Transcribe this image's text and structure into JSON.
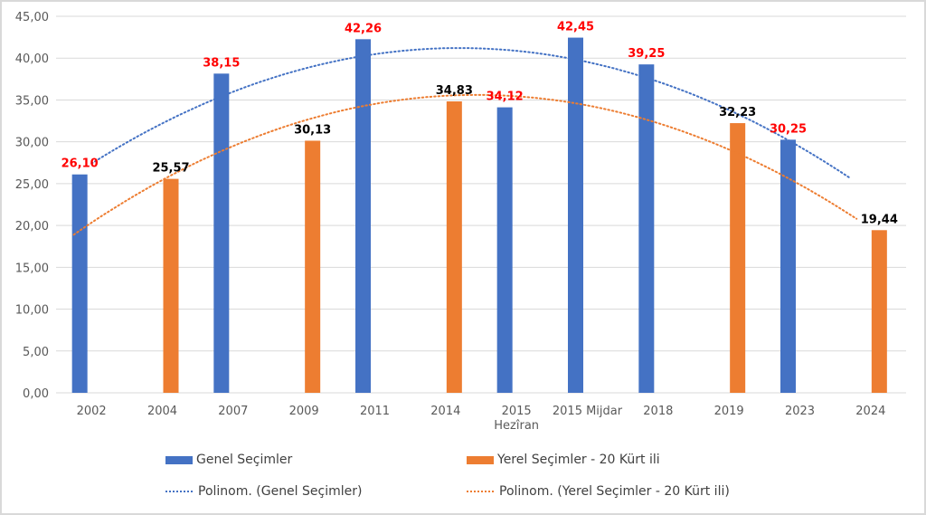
{
  "chart_data": {
    "type": "bar",
    "title": "",
    "xlabel": "",
    "ylabel": "",
    "ylim": [
      0,
      45
    ],
    "y_ticks": [
      "0,00",
      "5,00",
      "10,00",
      "15,00",
      "20,00",
      "25,00",
      "30,00",
      "35,00",
      "40,00",
      "45,00"
    ],
    "y_tick_values": [
      0,
      5,
      10,
      15,
      20,
      25,
      30,
      35,
      40,
      45
    ],
    "grid": true,
    "categories": [
      "2002",
      "2004",
      "2007",
      "2009",
      "2011",
      "2014",
      "2015\nHezîran",
      "2015 Mijdar",
      "2018",
      "2019",
      "2023",
      "2024"
    ],
    "category_lines": [
      [
        "2002"
      ],
      [
        "2004"
      ],
      [
        "2007"
      ],
      [
        "2009"
      ],
      [
        "2011"
      ],
      [
        "2014"
      ],
      [
        "2015",
        "Hezîran"
      ],
      [
        "2015 Mijdar"
      ],
      [
        "2018"
      ],
      [
        "2019"
      ],
      [
        "2023"
      ],
      [
        "2024"
      ]
    ],
    "series": [
      {
        "name": "Genel Seçimler",
        "color": "#4472C4",
        "values": [
          26.1,
          null,
          38.15,
          null,
          42.26,
          null,
          34.12,
          42.45,
          39.25,
          null,
          30.25,
          null
        ],
        "labels": [
          "26,10",
          null,
          "38,15",
          null,
          "42,26",
          null,
          "34,12",
          "42,45",
          "39,25",
          null,
          "30,25",
          null
        ],
        "label_color": "#FF0000"
      },
      {
        "name": "Yerel Seçimler - 20 Kürt ili",
        "color": "#ED7D31",
        "values": [
          null,
          25.57,
          null,
          30.13,
          null,
          34.83,
          null,
          null,
          null,
          32.23,
          null,
          19.44
        ],
        "labels": [
          null,
          "25,57",
          null,
          "30,13",
          null,
          "34,83",
          null,
          null,
          null,
          "32,23",
          null,
          "19,44"
        ],
        "label_color": "#000000"
      }
    ],
    "trendlines": [
      {
        "name": "Polinom. (Genel Seçimler)",
        "type": "polynomial",
        "color": "#4472C4",
        "start_value": 27.4,
        "peak_value": 41.2,
        "end_value": 25.6
      },
      {
        "name": "Polinom. (Yerel Seçimler - 20 Kürt ili)",
        "type": "polynomial",
        "color": "#ED7D31",
        "start_value": 18.9,
        "peak_value": 35.6,
        "end_value": 20.8
      }
    ],
    "legend": {
      "placement": "bottom",
      "entries": [
        "Genel Seçimler",
        "Yerel Seçimler - 20 Kürt ili",
        "Polinom. (Genel Seçimler)",
        "Polinom. (Yerel Seçimler - 20 Kürt ili)"
      ]
    }
  }
}
